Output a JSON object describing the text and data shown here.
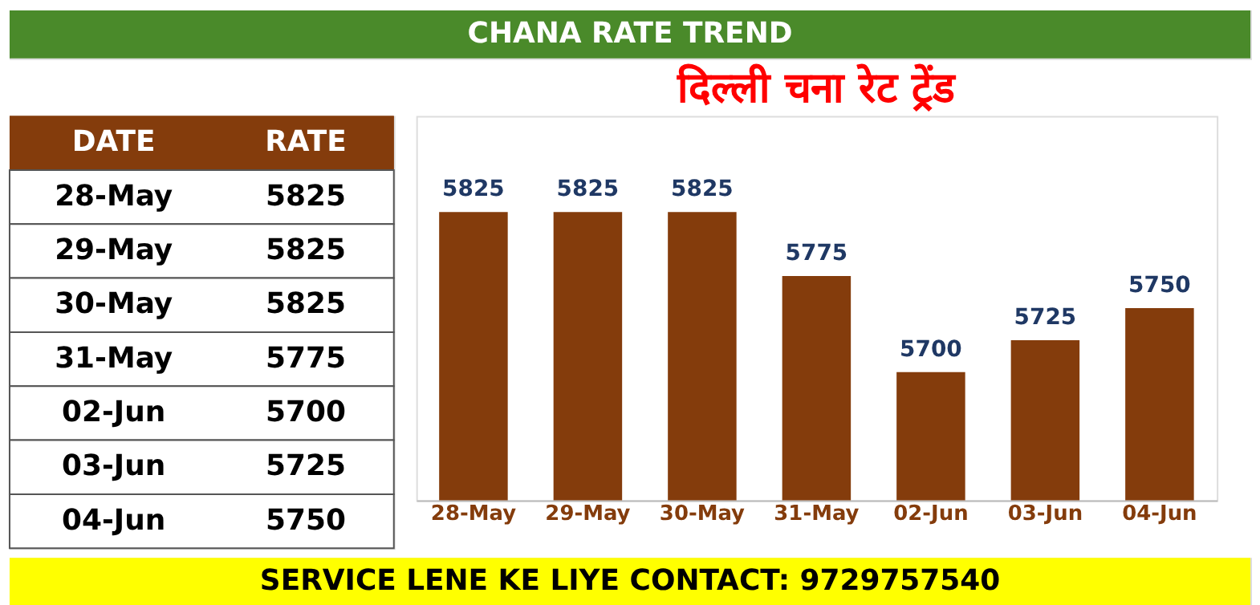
{
  "chart_data": {
    "type": "bar",
    "title": "दिल्ली चना रेट ट्रेंड",
    "subtitle": "CHANA RATE TREND",
    "categories": [
      "28-May",
      "29-May",
      "30-May",
      "31-May",
      "02-Jun",
      "03-Jun",
      "04-Jun"
    ],
    "values": [
      5825,
      5825,
      5825,
      5775,
      5700,
      5725,
      5750
    ],
    "color": "#843c0c",
    "ylim": [
      5600,
      5900
    ],
    "value_labels": [
      "5825",
      "5825",
      "5825",
      "5775",
      "5700",
      "5725",
      "5750"
    ],
    "grid": false,
    "annotations": [
      "DATE",
      "RATE",
      "SERVICE LENE KE LIYE CONTACT: 9729757540"
    ]
  }
}
